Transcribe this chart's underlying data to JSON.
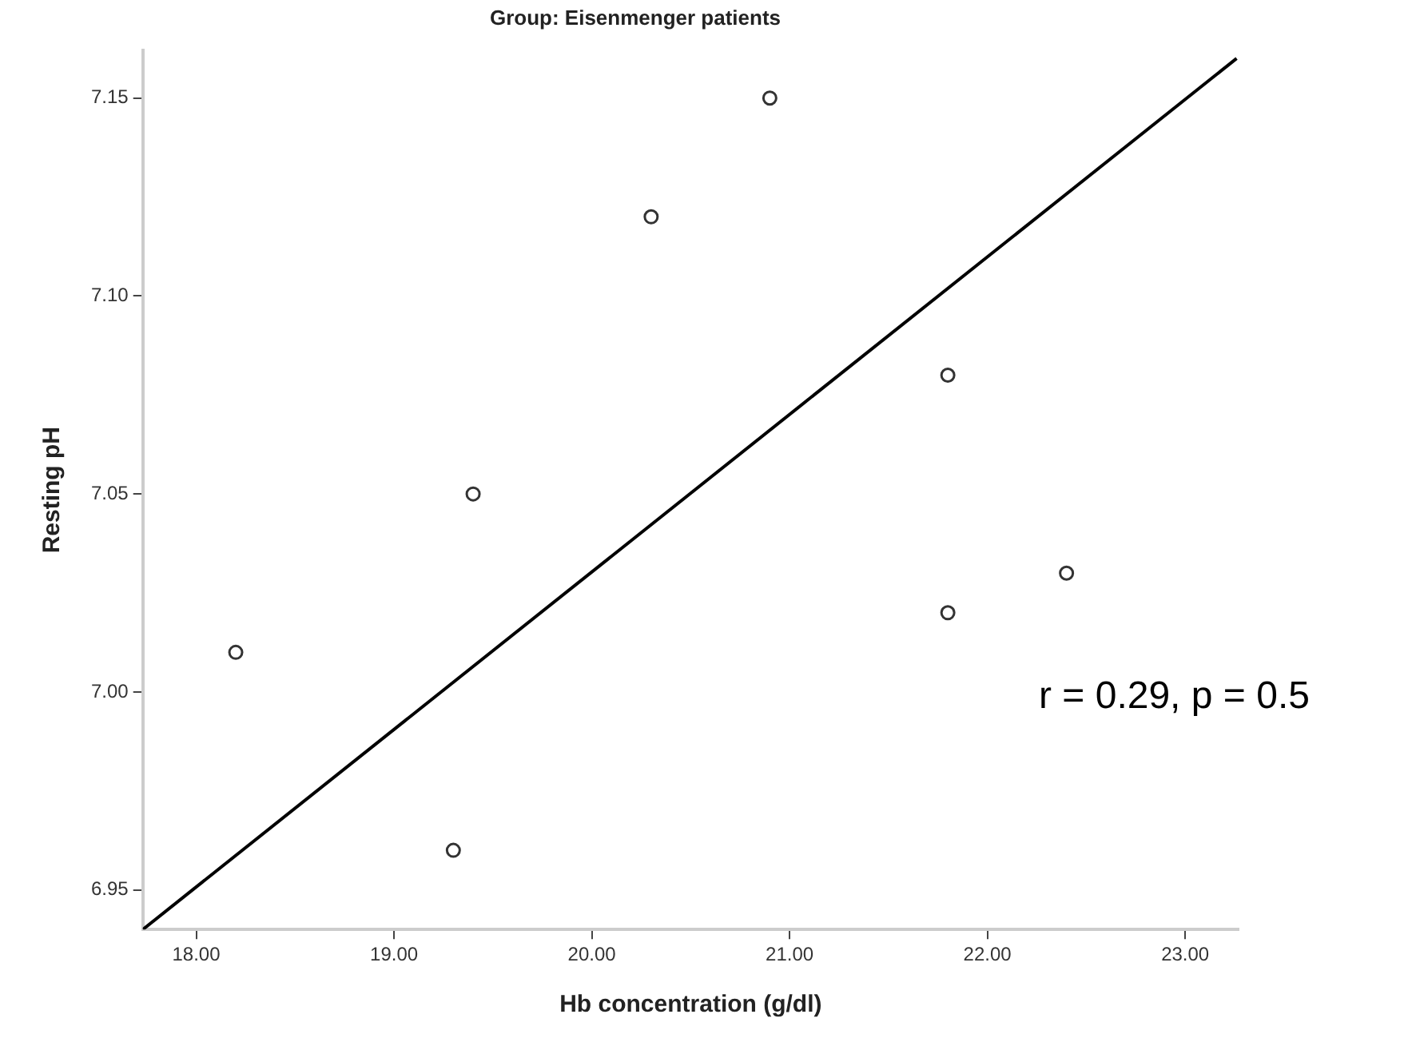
{
  "chart_data": {
    "type": "scatter",
    "title": "Group: Eisenmenger patients",
    "xlabel": "Hb concentration (g/dl)",
    "ylabel": "Resting pH",
    "series": [
      {
        "color": "#333333",
        "marker": "circle",
        "x": [
          18.2,
          19.3,
          19.4,
          20.3,
          20.9,
          21.8,
          21.8,
          22.4
        ],
        "values": [
          7.01,
          6.96,
          7.05,
          7.12,
          7.15,
          7.08,
          7.02,
          7.03
        ]
      },
      {
        "type": "line",
        "color": "#000000",
        "x": [
          17.73,
          23.26
        ],
        "values": [
          6.94,
          7.16
        ]
      }
    ],
    "grid": false,
    "legend": false,
    "xlim": [
      17.73,
      23.27
    ],
    "ylim": [
      6.94,
      7.162
    ],
    "xticks": [
      {
        "value": 18,
        "label": "18.00"
      },
      {
        "value": 19,
        "label": "19.00"
      },
      {
        "value": 20,
        "label": "20.00"
      },
      {
        "value": 21,
        "label": "21.00"
      },
      {
        "value": 22,
        "label": "22.00"
      },
      {
        "value": 23,
        "label": "23.00"
      }
    ],
    "yticks": [
      {
        "value": 6.95,
        "label": "6.95"
      },
      {
        "value": 7,
        "label": "7.00"
      },
      {
        "value": 7.05,
        "label": "7.05"
      },
      {
        "value": 7.1,
        "label": "7.10"
      },
      {
        "value": 7.15,
        "label": "7.15"
      }
    ],
    "annotations": [
      "r = 0.29, p = 0.5"
    ]
  }
}
